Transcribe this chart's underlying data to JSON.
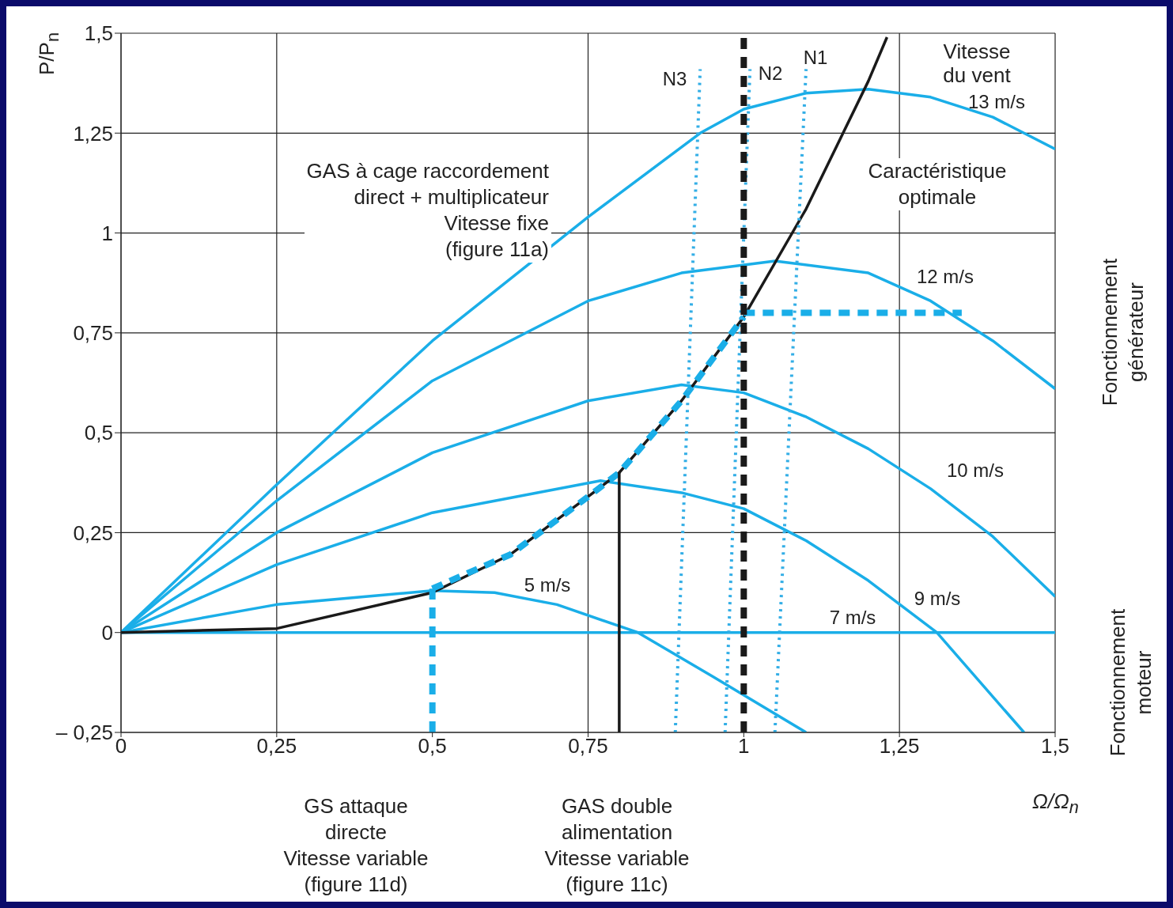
{
  "chart_data": {
    "type": "line",
    "xlabel": "Ω/Ω$_{n}$",
    "ylabel": "P/P$_{n}$",
    "xlim": [
      0,
      1.5
    ],
    "xticks": [
      0,
      {
        "value": 0.25,
        "label": "0,25"
      },
      {
        "value": 0.5,
        "label": "0,5"
      },
      {
        "value": 0.75,
        "label": "0,75"
      },
      1,
      {
        "value": 1.25,
        "label": "1,25"
      },
      {
        "value": 1.5,
        "label": "1,5"
      }
    ],
    "ylim": [
      -0.25,
      1.5
    ],
    "yticks": [
      {
        "value": -0.25,
        "label": "– 0,25"
      },
      0,
      {
        "value": 0.25,
        "label": "0,25"
      },
      {
        "value": 0.5,
        "label": "0,5"
      },
      {
        "value": 0.75,
        "label": "0,75"
      },
      1,
      {
        "value": 1.25,
        "label": "1,25"
      },
      {
        "value": 1.5,
        "label": "1,5"
      }
    ],
    "grid": true,
    "series": [
      {
        "color": "#1aaee8",
        "line_style": "solid",
        "x": [
          0,
          0.25,
          0.5,
          0.75,
          0.93,
          1.0,
          1.1,
          1.2,
          1.3,
          1.4,
          1.5
        ],
        "values": [
          0,
          0.37,
          0.73,
          1.04,
          1.25,
          1.31,
          1.35,
          1.36,
          1.34,
          1.29,
          1.21
        ]
      },
      {
        "color": "#1aaee8",
        "line_style": "solid",
        "x": [
          0,
          0.25,
          0.5,
          0.75,
          0.9,
          1.05,
          1.2,
          1.3,
          1.4,
          1.5
        ],
        "values": [
          0,
          0.33,
          0.63,
          0.83,
          0.9,
          0.93,
          0.9,
          0.83,
          0.73,
          0.61
        ]
      },
      {
        "color": "#1aaee8",
        "line_style": "solid",
        "x": [
          0,
          0.25,
          0.5,
          0.75,
          0.9,
          1.0,
          1.1,
          1.2,
          1.3,
          1.4,
          1.5
        ],
        "values": [
          0,
          0.25,
          0.45,
          0.58,
          0.62,
          0.6,
          0.54,
          0.46,
          0.36,
          0.24,
          0.09
        ]
      },
      {
        "color": "#1aaee8",
        "line_style": "solid",
        "x": [
          0,
          0.25,
          0.5,
          0.77,
          0.9,
          1.0,
          1.1,
          1.2,
          1.31,
          1.45
        ],
        "values": [
          0,
          0.17,
          0.3,
          0.38,
          0.35,
          0.31,
          0.23,
          0.13,
          0,
          -0.25
        ]
      },
      {
        "color": "#1aaee8",
        "line_style": "solid",
        "x": [
          0,
          0.25,
          0.5,
          0.6,
          0.7,
          0.83,
          0.95,
          1.1
        ],
        "values": [
          0,
          0.07,
          0.105,
          0.1,
          0.07,
          0,
          -0.11,
          -0.25
        ]
      },
      {
        "color": "#1aaee8",
        "line_style": "solid",
        "x": [
          0,
          1.5
        ],
        "values": [
          0,
          0
        ]
      },
      {
        "color": "#1a1a1a",
        "line_style": "solid",
        "x": [
          0,
          0.25,
          0.5,
          0.625,
          0.75,
          0.8,
          0.9,
          1.0,
          1.1,
          1.15,
          1.2,
          1.23
        ],
        "values": [
          0,
          0.01,
          0.1,
          0.195,
          0.34,
          0.4,
          0.58,
          0.79,
          1.06,
          1.22,
          1.38,
          1.49
        ]
      },
      {
        "color": "#1aaee8",
        "line_style": "dashed",
        "x": [
          0.5,
          0.625,
          0.75,
          0.8,
          0.9,
          1.0
        ],
        "values": [
          0.11,
          0.195,
          0.34,
          0.4,
          0.58,
          0.79
        ]
      },
      {
        "color": "#1aaee8",
        "line_style": "dashed",
        "x": [
          1.0,
          1.35
        ],
        "values": [
          0.8,
          0.8
        ]
      },
      {
        "color": "#1aaee8",
        "line_style": "dashed",
        "x": [
          0.5,
          0.5
        ],
        "values": [
          -0.25,
          0.11
        ]
      },
      {
        "color": "#1a1a1a",
        "line_style": "solid",
        "x": [
          0.8,
          0.8
        ],
        "values": [
          -0.25,
          0.4
        ]
      },
      {
        "color": "#33aee6",
        "line_style": "dotted",
        "x": [
          0.89,
          0.93
        ],
        "values": [
          -0.25,
          1.41
        ]
      },
      {
        "color": "#33aee6",
        "line_style": "dotted",
        "x": [
          0.97,
          1.01
        ],
        "values": [
          -0.25,
          1.41
        ]
      },
      {
        "color": "#33aee6",
        "line_style": "dotted",
        "x": [
          1.05,
          1.1
        ],
        "values": [
          -0.25,
          1.41
        ]
      },
      {
        "color": "#1a1a1a",
        "line_style": "dashed",
        "x": [
          1,
          1
        ],
        "values": [
          -0.25,
          1.5
        ]
      }
    ],
    "annotations": [
      "N3",
      "N2",
      "N1",
      "13 m/s",
      "12 m/s",
      "10 m/s",
      "9 m/s",
      "7 m/s",
      "5 m/s",
      "Vitesse\ndu vent",
      "GAS à cage raccordement\ndirect + multiplicateur\nVitesse fixe\n(figure 11a)",
      "Caractéristique\noptimale",
      "GS attaque\ndirecte\nVitesse variable\n(figure 11d)",
      "GAS double\nalimentation\nVitesse variable\n(figure 11c)",
      "Fonctionnement générateur",
      "Fonctionnement\nmoteur"
    ]
  }
}
